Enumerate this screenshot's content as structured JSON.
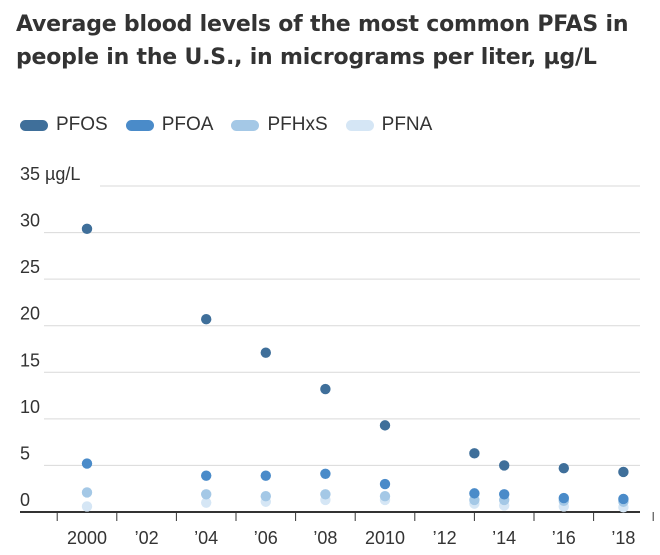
{
  "title": "Average blood levels of the most common PFAS in people in the U.S., in micrograms per liter, µg/L",
  "colors": {
    "PFOS": "#3f6f9a",
    "PFOA": "#4a8bc9",
    "PFHxS": "#a4c8e6",
    "PFNA": "#d5e6f5",
    "grid": "#d9d9d9",
    "axis": "#333333"
  },
  "chart_data": {
    "type": "scatter",
    "title": "Average blood levels of the most common PFAS in people in the U.S., in micrograms per liter, µg/L",
    "ylim": [
      0,
      35
    ],
    "xlim": [
      1999,
      2018
    ],
    "y_ticks": [
      0,
      5,
      10,
      15,
      20,
      25,
      30,
      35
    ],
    "y_tick_labels": [
      "0",
      "5",
      "10",
      "15",
      "20",
      "25",
      "30",
      "35 µg/L"
    ],
    "x_ticks": [
      2000,
      2002,
      2004,
      2006,
      2008,
      2010,
      2012,
      2014,
      2016,
      2018
    ],
    "x_tick_labels": [
      "2000",
      "’02",
      "’04",
      "’06",
      "’08",
      "2010",
      "’12",
      "’14",
      "’16",
      "’18"
    ],
    "grid": true,
    "legend_position": "top-left",
    "series": [
      {
        "name": "PFOS",
        "x": [
          2000,
          2004,
          2006,
          2008,
          2010,
          2013,
          2014,
          2016,
          2018
        ],
        "y": [
          30.4,
          20.7,
          17.1,
          13.2,
          9.3,
          6.3,
          5.0,
          4.7,
          4.3
        ]
      },
      {
        "name": "PFOA",
        "x": [
          2000,
          2004,
          2006,
          2008,
          2010,
          2013,
          2014,
          2016,
          2018
        ],
        "y": [
          5.2,
          3.9,
          3.9,
          4.1,
          3.0,
          2.0,
          1.9,
          1.5,
          1.4
        ]
      },
      {
        "name": "PFHxS",
        "x": [
          2000,
          2004,
          2006,
          2008,
          2010,
          2013,
          2014,
          2016,
          2018
        ],
        "y": [
          2.1,
          1.9,
          1.7,
          1.9,
          1.7,
          1.3,
          1.3,
          1.2,
          1.1
        ]
      },
      {
        "name": "PFNA",
        "x": [
          2000,
          2004,
          2006,
          2008,
          2010,
          2013,
          2014,
          2016,
          2018
        ],
        "y": [
          0.6,
          1.0,
          1.1,
          1.3,
          1.3,
          0.9,
          0.7,
          0.6,
          0.5
        ]
      }
    ]
  }
}
